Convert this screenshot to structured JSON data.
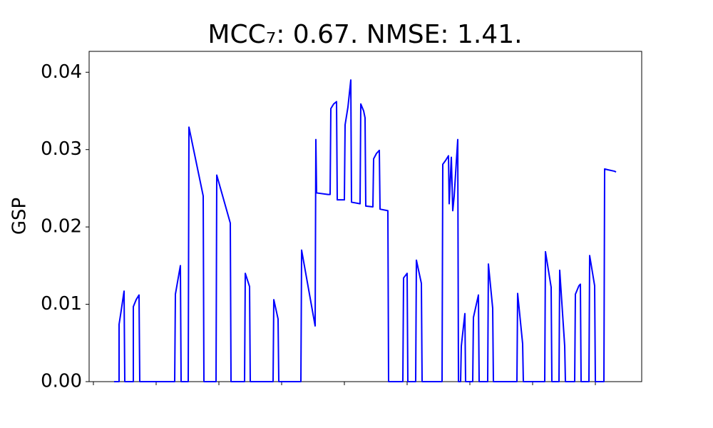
{
  "chart_data": {
    "type": "line",
    "title": "MCC₇: 0.67. NMSE: 1.41.",
    "ylabel": "GSP",
    "x": [
      29,
      36,
      36,
      39,
      43,
      44,
      56,
      56,
      60,
      64,
      65,
      114,
      115,
      122,
      123,
      133,
      134,
      154,
      155,
      172,
      173,
      192,
      193,
      212,
      213,
      219,
      220,
      252,
      253,
      259,
      260,
      291,
      292,
      311,
      312,
      313,
      329,
      332,
      333,
      337,
      341,
      342,
      352,
      353,
      357,
      361,
      362,
      374,
      375,
      379,
      381,
      382,
      392,
      393,
      397,
      401,
      402,
      413,
      414,
      434,
      435,
      440,
      441,
      452,
      453,
      460,
      461,
      489,
      490,
      494,
      498,
      499,
      502,
      504,
      506,
      511,
      512,
      515,
      516,
      521,
      522,
      532,
      533,
      540,
      541,
      553,
      554,
      560,
      561,
      594,
      595,
      602,
      603,
      633,
      634,
      642,
      643,
      653,
      654,
      661,
      662,
      675,
      676,
      681,
      683,
      684,
      695,
      696,
      703,
      704,
      716,
      717,
      721,
      731,
      733
    ],
    "series": [
      {
        "name": "GSP",
        "color": "#0000ff",
        "values": [
          0,
          0,
          0.0074,
          0.0092,
          0.0117,
          0,
          0,
          0.0097,
          0.0106,
          0.0112,
          0,
          0,
          0.0113,
          0.015,
          0,
          0,
          0.0329,
          0.024,
          0,
          0,
          0.0267,
          0.0205,
          0,
          0,
          0.014,
          0.0123,
          0,
          0,
          0.0106,
          0.0081,
          0,
          0,
          0.017,
          0.0072,
          0.0313,
          0.0244,
          0.0242,
          0.0242,
          0.0353,
          0.0359,
          0.0362,
          0.0235,
          0.0235,
          0.0332,
          0.0355,
          0.039,
          0.0232,
          0.023,
          0.0359,
          0.035,
          0.0341,
          0.0227,
          0.0226,
          0.0288,
          0.0295,
          0.0299,
          0.0223,
          0.0221,
          0,
          0,
          0.0134,
          0.014,
          0,
          0,
          0.0157,
          0.0127,
          0,
          0,
          0.0281,
          0.0286,
          0.0292,
          0.023,
          0.029,
          0.0221,
          0.024,
          0.0313,
          0,
          0,
          0.0046,
          0.0088,
          0,
          0,
          0.0083,
          0.0112,
          0,
          0,
          0.0152,
          0.0095,
          0,
          0,
          0.0114,
          0.0049,
          0,
          0,
          0.0168,
          0.0122,
          0,
          0,
          0.0144,
          0.0046,
          0,
          0,
          0.0113,
          0.0124,
          0.0126,
          0,
          0,
          0.0163,
          0.0124,
          0,
          0,
          0.0275,
          0.0274,
          0.0272,
          0.0271
        ]
      }
    ],
    "xlim": [
      -6,
      769
    ],
    "xticks": [
      0,
      88,
      176,
      264,
      352,
      440,
      528,
      616,
      704
    ],
    "ylim": [
      0,
      0.0427
    ],
    "yticks": [
      {
        "value": 0,
        "label": "0.00"
      },
      0.01,
      0.02,
      0.03,
      0.04
    ]
  }
}
